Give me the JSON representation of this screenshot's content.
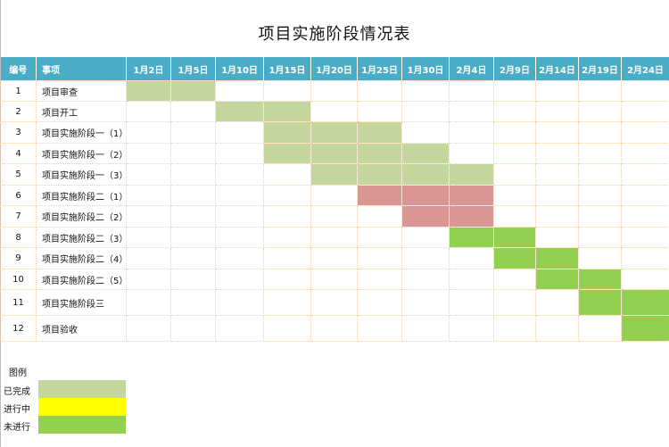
{
  "title": "项目实施阶段情况表",
  "columns": {
    "no": "编号",
    "item": "事项",
    "dates": [
      "1月2日",
      "1月5日",
      "1月10日",
      "1月15日",
      "1月20日",
      "1月25日",
      "1月30日",
      "2月4日",
      "2月9日",
      "2月14日",
      "2月19日",
      "2月24日"
    ]
  },
  "rows": [
    {
      "no": "1",
      "name": "项目审查",
      "status": [
        "done",
        "done",
        "",
        "",
        "",
        "",
        "",
        "",
        "",
        "",
        "",
        ""
      ]
    },
    {
      "no": "2",
      "name": "项目开工",
      "status": [
        "",
        "",
        "done",
        "done",
        "",
        "",
        "",
        "",
        "",
        "",
        "",
        ""
      ]
    },
    {
      "no": "3",
      "name": "项目实施阶段一（1）",
      "status": [
        "",
        "",
        "",
        "done",
        "done",
        "done",
        "",
        "",
        "",
        "",
        "",
        ""
      ]
    },
    {
      "no": "4",
      "name": "项目实施阶段一（2）",
      "status": [
        "",
        "",
        "",
        "done",
        "done",
        "done",
        "done",
        "",
        "",
        "",
        "",
        ""
      ]
    },
    {
      "no": "5",
      "name": "项目实施阶段一（3）",
      "status": [
        "",
        "",
        "",
        "",
        "done",
        "done",
        "done",
        "done",
        "",
        "",
        "",
        ""
      ]
    },
    {
      "no": "6",
      "name": "项目实施阶段二（1）",
      "status": [
        "",
        "",
        "",
        "",
        "",
        "late",
        "late",
        "late",
        "",
        "",
        "",
        ""
      ]
    },
    {
      "no": "7",
      "name": "项目实施阶段二（2）",
      "status": [
        "",
        "",
        "",
        "",
        "",
        "",
        "late",
        "late",
        "",
        "",
        "",
        ""
      ]
    },
    {
      "no": "8",
      "name": "项目实施阶段二（3）",
      "status": [
        "",
        "",
        "",
        "",
        "",
        "",
        "",
        "todo",
        "todo",
        "",
        "",
        ""
      ]
    },
    {
      "no": "9",
      "name": "项目实施阶段二（4）",
      "status": [
        "",
        "",
        "",
        "",
        "",
        "",
        "",
        "",
        "todo",
        "todo",
        "",
        ""
      ]
    },
    {
      "no": "10",
      "name": "项目实施阶段二（5）",
      "status": [
        "",
        "",
        "",
        "",
        "",
        "",
        "",
        "",
        "",
        "todo",
        "todo",
        ""
      ]
    },
    {
      "no": "11",
      "name": "项目实施阶段三",
      "status": [
        "",
        "",
        "",
        "",
        "",
        "",
        "",
        "",
        "",
        "",
        "todo",
        "todo"
      ]
    },
    {
      "no": "12",
      "name": "项目验收",
      "status": [
        "",
        "",
        "",
        "",
        "",
        "",
        "",
        "",
        "",
        "",
        "",
        "todo"
      ]
    }
  ],
  "legend": {
    "title": "图例",
    "items": [
      {
        "label": "已完成",
        "color": "#c3d69b"
      },
      {
        "label": "进行中",
        "color": "#ffff00"
      },
      {
        "label": "未进行",
        "color": "#92d050"
      }
    ]
  },
  "colors": {
    "header_bg": "#4bacc6",
    "done": "#c3d69b",
    "in_progress": "#ffff00",
    "not_started": "#92d050",
    "delayed": "#da9694",
    "grid": "#f3cfa8"
  }
}
